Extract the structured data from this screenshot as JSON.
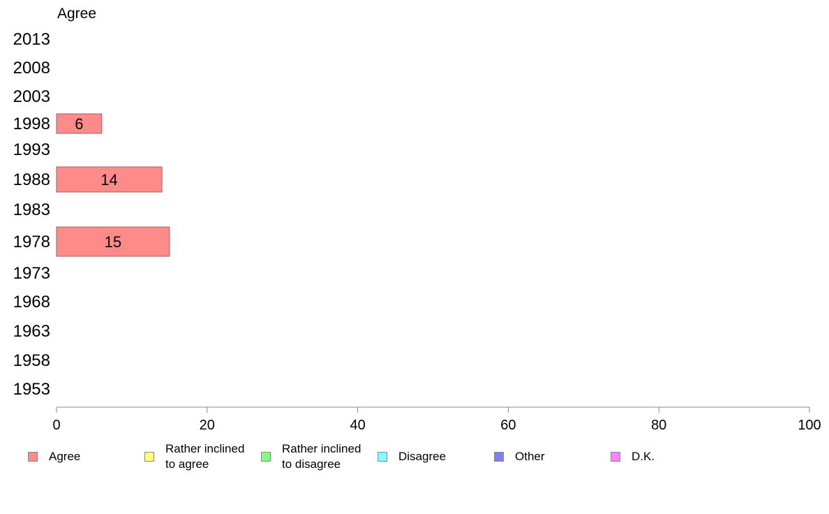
{
  "chart_data": {
    "type": "bar",
    "orientation": "horizontal",
    "header": "Agree",
    "categories": [
      "2013",
      "2008",
      "2003",
      "1998",
      "1993",
      "1988",
      "1983",
      "1978",
      "1973",
      "1968",
      "1963",
      "1958",
      "1953"
    ],
    "series": [
      {
        "name": "Agree",
        "color": "#ff8a8a",
        "values": [
          null,
          null,
          null,
          6,
          null,
          14,
          null,
          15,
          null,
          null,
          null,
          null,
          null
        ]
      }
    ],
    "xlim": [
      0,
      100
    ],
    "xticks": [
      "0",
      "20",
      "40",
      "60",
      "80",
      "100"
    ],
    "grid": false,
    "legend_position": "bottom",
    "legend": [
      {
        "label_lines": [
          "Agree"
        ],
        "color": "#ff8a8a"
      },
      {
        "label_lines": [
          "Rather inclined",
          "to agree"
        ],
        "color": "#ffff80"
      },
      {
        "label_lines": [
          "Rather inclined",
          "to disagree"
        ],
        "color": "#80ff80"
      },
      {
        "label_lines": [
          "Disagree"
        ],
        "color": "#80ffff"
      },
      {
        "label_lines": [
          "Other"
        ],
        "color": "#8080ff"
      },
      {
        "label_lines": [
          "D.K."
        ],
        "color": "#ff80ff"
      }
    ]
  }
}
